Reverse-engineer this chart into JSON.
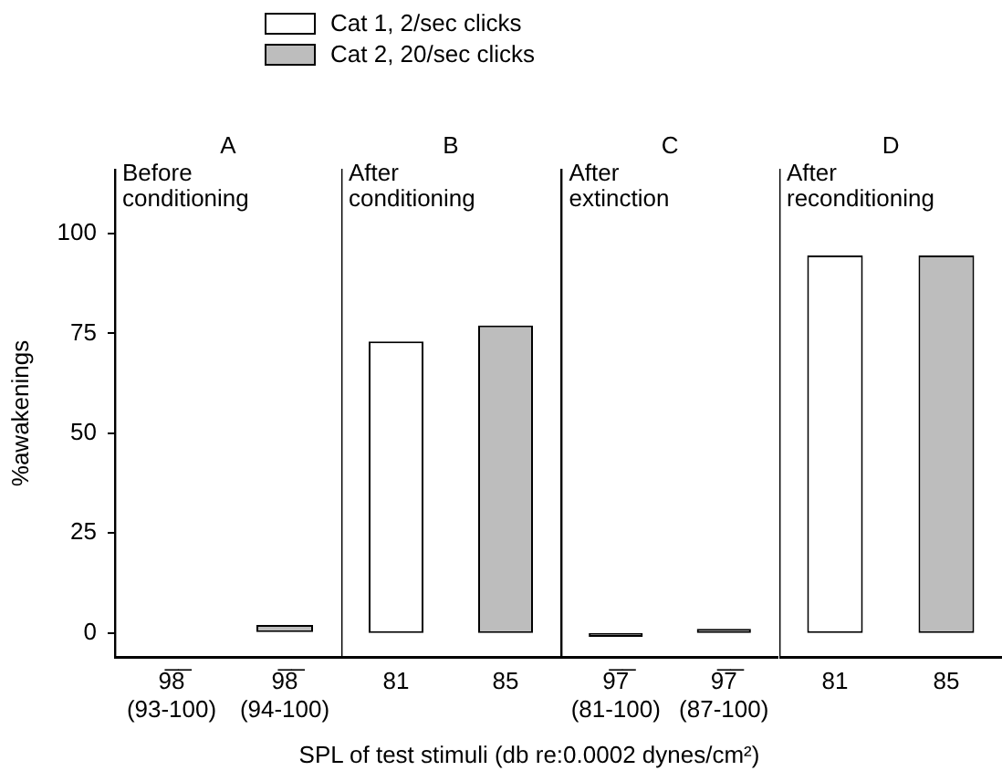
{
  "chart_data": [
    {
      "type": "bar",
      "title": "A",
      "subtitle": "Before conditioning",
      "categories": [
        "9̅8̅ (93-100)",
        "9̅8̅ (94-100)"
      ],
      "series": [
        {
          "name": "Cat 1, 2/sec clicks",
          "color": "#ffffff",
          "values": [
            0,
            null
          ]
        },
        {
          "name": "Cat 2, 20/sec clicks",
          "color": "#bdbdbd",
          "values": [
            null,
            2
          ]
        }
      ],
      "ylim": [
        -6,
        116
      ],
      "yticks": [
        0,
        25,
        50,
        75,
        100
      ],
      "ylabel": "%awakenings",
      "xlabel": "SPL of test stimuli (db re:0.0002 dynes/cm²)",
      "legend": "top"
    },
    {
      "type": "bar",
      "title": "B",
      "subtitle": "After conditioning",
      "categories": [
        "81",
        "85"
      ],
      "series": [
        {
          "color": "#ffffff",
          "values": [
            73,
            null
          ]
        },
        {
          "color": "#bdbdbd",
          "values": [
            null,
            77
          ]
        }
      ],
      "ylim": [
        -6,
        116
      ],
      "tick_labels": "x"
    },
    {
      "type": "bar",
      "title": "C",
      "subtitle": "After extinction",
      "categories": [
        "9̅7̅ (81-100)",
        "9̅7̅ (87-100)"
      ],
      "series": [
        {
          "color": "#ffffff",
          "values": [
            -1,
            null
          ]
        },
        {
          "color": "#bdbdbd",
          "values": [
            null,
            1
          ]
        }
      ],
      "ylim": [
        -6,
        116
      ],
      "tick_labels": "x"
    },
    {
      "type": "bar",
      "title": "D",
      "subtitle": "After reconditioning",
      "categories": [
        "81",
        "85"
      ],
      "series": [
        {
          "color": "#ffffff",
          "values": [
            94.5,
            null
          ]
        },
        {
          "color": "#bdbdbd",
          "values": [
            null,
            94.5
          ]
        }
      ],
      "ylim": [
        -6,
        116
      ],
      "tick_labels": "x"
    }
  ]
}
